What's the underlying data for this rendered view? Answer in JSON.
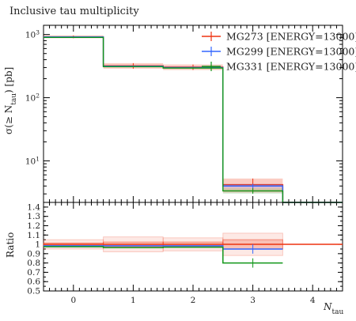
{
  "chart_data": {
    "type": "line",
    "title": "Inclusive tau multiplicity",
    "xlabel_main": "N",
    "xlabel_sub": "tau",
    "ylabel_main": "σ(≥ N",
    "ylabel_sub": "tau",
    "ylabel_end": ") [pb]",
    "ratio_ylabel": "Ratio",
    "x_edges": [
      -0.5,
      0.5,
      1.5,
      2.5,
      3.5,
      4.5
    ],
    "xlim": [
      -0.5,
      4.5
    ],
    "ylim": [
      2.2,
      1400
    ],
    "yscale": "log",
    "ratio_ylim": [
      0.5,
      1.45
    ],
    "x_ticks": [
      "0",
      "1",
      "2",
      "3",
      "4"
    ],
    "y_ticks_major": [
      "10",
      "10",
      "10"
    ],
    "y_ticks_exp": [
      "1",
      "2",
      "3"
    ],
    "ratio_ticks": [
      "0.5",
      "0.6",
      "0.7",
      "0.8",
      "0.9",
      "1",
      "1.1",
      "1.2",
      "1.3",
      "1.4"
    ],
    "legend_position": "top-right",
    "series": [
      {
        "name": "MG273 [ENERGY=13000]",
        "color": "#ee3311",
        "values": [
          920,
          320,
          305,
          4.2,
          0.0
        ],
        "errors": [
          0.05,
          0.1,
          0.1,
          0.25,
          0.0
        ]
      },
      {
        "name": "MG299 [ENERGY=13000]",
        "color": "#3366ff",
        "values": [
          915,
          315,
          300,
          4.0,
          0.0
        ],
        "errors": [
          0.02,
          0.02,
          0.03,
          0.08,
          0.0
        ]
      },
      {
        "name": "MG331 [ENERGY=13000]",
        "color": "#109618",
        "values": [
          900,
          310,
          295,
          3.35,
          0.0
        ],
        "errors": [
          0.02,
          0.02,
          0.03,
          0.1,
          0.0
        ]
      }
    ],
    "ratio_series": [
      {
        "name": "MG273 [ENERGY=13000]",
        "color": "#ee3311",
        "values": [
          1.0,
          1.0,
          1.0,
          1.0,
          1.0
        ]
      },
      {
        "name": "MG299 [ENERGY=13000]",
        "color": "#3366ff",
        "values": [
          0.985,
          0.985,
          0.985,
          0.95,
          null
        ]
      },
      {
        "name": "MG331 [ENERGY=13000]",
        "color": "#109618",
        "values": [
          0.975,
          0.965,
          0.97,
          0.8,
          null
        ]
      }
    ],
    "ratio_bands": [
      {
        "color": "#ee3311",
        "opacity": 0.22,
        "values": [
          [
            0.95,
            1.05
          ],
          [
            0.92,
            1.08
          ],
          [
            0.93,
            1.07
          ],
          [
            0.88,
            1.12
          ],
          [
            1,
            1
          ]
        ]
      },
      {
        "color": "#ee3311",
        "opacity": 0.45,
        "values": [
          [
            0.985,
            1.015
          ],
          [
            0.975,
            1.025
          ],
          [
            0.975,
            1.025
          ],
          [
            0.95,
            1.05
          ],
          [
            1,
            1
          ]
        ]
      }
    ]
  }
}
